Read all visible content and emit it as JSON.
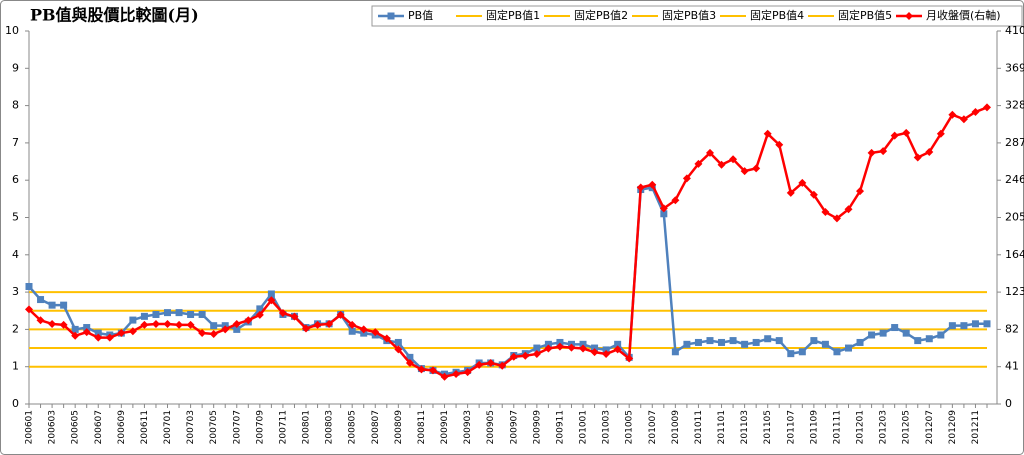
{
  "chart_data": {
    "type": "line",
    "title": "PB值與股價比較圖(月)",
    "categories": [
      "200601",
      null,
      "200603",
      null,
      "200605",
      null,
      "200607",
      null,
      "200609",
      null,
      "200611",
      null,
      "200701",
      null,
      "200703",
      null,
      "200705",
      null,
      "200707",
      null,
      "200709",
      null,
      "200711",
      null,
      "200801",
      null,
      "200803",
      null,
      "200805",
      null,
      "200807",
      null,
      "200809",
      null,
      "200811",
      null,
      "200901",
      null,
      "200903",
      null,
      "200905",
      null,
      "200907",
      null,
      "200909",
      null,
      "200911",
      null,
      "201001",
      null,
      "201003",
      null,
      "201005",
      null,
      "201007",
      null,
      "201009",
      null,
      "201011",
      null,
      "201101",
      null,
      "201103",
      null,
      "201105",
      null,
      "201107",
      null,
      "201109",
      null,
      "201111",
      null,
      "201201",
      null,
      "201203",
      null,
      "201205",
      null,
      "201207",
      null,
      "201209",
      null,
      "201211",
      null
    ],
    "ylim": [
      0,
      10
    ],
    "yticks": [
      0,
      1,
      2,
      3,
      4,
      5,
      6,
      7,
      8,
      9,
      10
    ],
    "y2lim": [
      0,
      410
    ],
    "y2ticks": [
      0,
      41,
      82,
      123,
      164,
      205,
      246,
      287,
      328,
      369,
      410
    ],
    "series": [
      {
        "name": "PB值",
        "color": "#4f81bd",
        "marker": "square",
        "values": [
          3.15,
          2.8,
          2.65,
          2.65,
          2.0,
          2.05,
          1.9,
          1.85,
          1.9,
          2.25,
          2.35,
          2.4,
          2.45,
          2.45,
          2.4,
          2.4,
          2.1,
          2.1,
          2.0,
          2.2,
          2.55,
          2.95,
          2.4,
          2.35,
          2.05,
          2.15,
          2.15,
          2.4,
          1.95,
          1.9,
          1.85,
          1.7,
          1.65,
          1.25,
          0.95,
          0.9,
          0.8,
          0.85,
          0.9,
          1.1,
          1.1,
          1.05,
          1.3,
          1.35,
          1.5,
          1.6,
          1.65,
          1.6,
          1.6,
          1.5,
          1.45,
          1.6,
          1.25,
          5.75,
          5.8,
          5.1,
          1.4,
          1.6,
          1.65,
          1.7,
          1.65,
          1.7,
          1.6,
          1.65,
          1.75,
          1.7,
          1.35,
          1.4,
          1.7,
          1.6,
          1.4,
          1.5,
          1.65,
          1.85,
          1.9,
          2.05,
          1.9,
          1.7,
          1.75,
          1.85,
          2.1,
          2.1,
          2.15,
          2.15
        ]
      },
      {
        "name": "固定PB值1",
        "color": "#ffc000",
        "values": [
          1,
          1,
          1,
          1,
          1,
          1,
          1,
          1,
          1,
          1,
          1,
          1,
          1,
          1,
          1,
          1,
          1,
          1,
          1,
          1,
          1,
          1,
          1,
          1,
          1,
          1,
          1,
          1,
          1,
          1,
          1,
          1,
          1,
          1,
          1,
          1,
          1,
          1,
          1,
          1,
          1,
          1,
          1,
          1,
          1,
          1,
          1,
          1,
          1,
          1,
          1,
          1,
          1,
          1,
          1,
          1,
          1,
          1,
          1,
          1,
          1,
          1,
          1,
          1,
          1,
          1,
          1,
          1,
          1,
          1,
          1,
          1,
          1,
          1,
          1,
          1,
          1,
          1,
          1,
          1,
          1,
          1,
          1,
          1
        ]
      },
      {
        "name": "固定PB值2",
        "color": "#ffc000",
        "values": [
          1.5,
          1.5,
          1.5,
          1.5,
          1.5,
          1.5,
          1.5,
          1.5,
          1.5,
          1.5,
          1.5,
          1.5,
          1.5,
          1.5,
          1.5,
          1.5,
          1.5,
          1.5,
          1.5,
          1.5,
          1.5,
          1.5,
          1.5,
          1.5,
          1.5,
          1.5,
          1.5,
          1.5,
          1.5,
          1.5,
          1.5,
          1.5,
          1.5,
          1.5,
          1.5,
          1.5,
          1.5,
          1.5,
          1.5,
          1.5,
          1.5,
          1.5,
          1.5,
          1.5,
          1.5,
          1.5,
          1.5,
          1.5,
          1.5,
          1.5,
          1.5,
          1.5,
          1.5,
          1.5,
          1.5,
          1.5,
          1.5,
          1.5,
          1.5,
          1.5,
          1.5,
          1.5,
          1.5,
          1.5,
          1.5,
          1.5,
          1.5,
          1.5,
          1.5,
          1.5,
          1.5,
          1.5,
          1.5,
          1.5,
          1.5,
          1.5,
          1.5,
          1.5,
          1.5,
          1.5,
          1.5,
          1.5,
          1.5,
          1.5
        ]
      },
      {
        "name": "固定PB值3",
        "color": "#ffc000",
        "values": [
          2,
          2,
          2,
          2,
          2,
          2,
          2,
          2,
          2,
          2,
          2,
          2,
          2,
          2,
          2,
          2,
          2,
          2,
          2,
          2,
          2,
          2,
          2,
          2,
          2,
          2,
          2,
          2,
          2,
          2,
          2,
          2,
          2,
          2,
          2,
          2,
          2,
          2,
          2,
          2,
          2,
          2,
          2,
          2,
          2,
          2,
          2,
          2,
          2,
          2,
          2,
          2,
          2,
          2,
          2,
          2,
          2,
          2,
          2,
          2,
          2,
          2,
          2,
          2,
          2,
          2,
          2,
          2,
          2,
          2,
          2,
          2,
          2,
          2,
          2,
          2,
          2,
          2,
          2,
          2,
          2,
          2,
          2,
          2
        ]
      },
      {
        "name": "固定PB值4",
        "color": "#ffc000",
        "values": [
          2.5,
          2.5,
          2.5,
          2.5,
          2.5,
          2.5,
          2.5,
          2.5,
          2.5,
          2.5,
          2.5,
          2.5,
          2.5,
          2.5,
          2.5,
          2.5,
          2.5,
          2.5,
          2.5,
          2.5,
          2.5,
          2.5,
          2.5,
          2.5,
          2.5,
          2.5,
          2.5,
          2.5,
          2.5,
          2.5,
          2.5,
          2.5,
          2.5,
          2.5,
          2.5,
          2.5,
          2.5,
          2.5,
          2.5,
          2.5,
          2.5,
          2.5,
          2.5,
          2.5,
          2.5,
          2.5,
          2.5,
          2.5,
          2.5,
          2.5,
          2.5,
          2.5,
          2.5,
          2.5,
          2.5,
          2.5,
          2.5,
          2.5,
          2.5,
          2.5,
          2.5,
          2.5,
          2.5,
          2.5,
          2.5,
          2.5,
          2.5,
          2.5,
          2.5,
          2.5,
          2.5,
          2.5,
          2.5,
          2.5,
          2.5,
          2.5,
          2.5,
          2.5,
          2.5,
          2.5,
          2.5,
          2.5,
          2.5,
          2.5
        ]
      },
      {
        "name": "固定PB值5",
        "color": "#ffc000",
        "values": [
          3,
          3,
          3,
          3,
          3,
          3,
          3,
          3,
          3,
          3,
          3,
          3,
          3,
          3,
          3,
          3,
          3,
          3,
          3,
          3,
          3,
          3,
          3,
          3,
          3,
          3,
          3,
          3,
          3,
          3,
          3,
          3,
          3,
          3,
          3,
          3,
          3,
          3,
          3,
          3,
          3,
          3,
          3,
          3,
          3,
          3,
          3,
          3,
          3,
          3,
          3,
          3,
          3,
          3,
          3,
          3,
          3,
          3,
          3,
          3,
          3,
          3,
          3,
          3,
          3,
          3,
          3,
          3,
          3,
          3,
          3,
          3,
          3,
          3,
          3,
          3,
          3,
          3,
          3,
          3,
          3,
          3,
          3,
          3
        ]
      },
      {
        "name": "月收盤價(右軸)",
        "color": "#ff0000",
        "marker": "diamond",
        "axis": "y2",
        "values": [
          104,
          92,
          88,
          87,
          75,
          79,
          73,
          73,
          78,
          80,
          87,
          88,
          88,
          87,
          87,
          78,
          77,
          82,
          88,
          92,
          98,
          114,
          100,
          96,
          83,
          87,
          88,
          98,
          87,
          82,
          79,
          72,
          60,
          45,
          38,
          37,
          30,
          33,
          35,
          43,
          45,
          42,
          52,
          53,
          55,
          61,
          63,
          62,
          61,
          57,
          55,
          60,
          50,
          238,
          241,
          215,
          224,
          248,
          264,
          276,
          263,
          269,
          256,
          259,
          297,
          285,
          232,
          243,
          230,
          211,
          204,
          214,
          234,
          276,
          278,
          295,
          298,
          271,
          277,
          297,
          318,
          313,
          321,
          326
        ]
      }
    ]
  }
}
